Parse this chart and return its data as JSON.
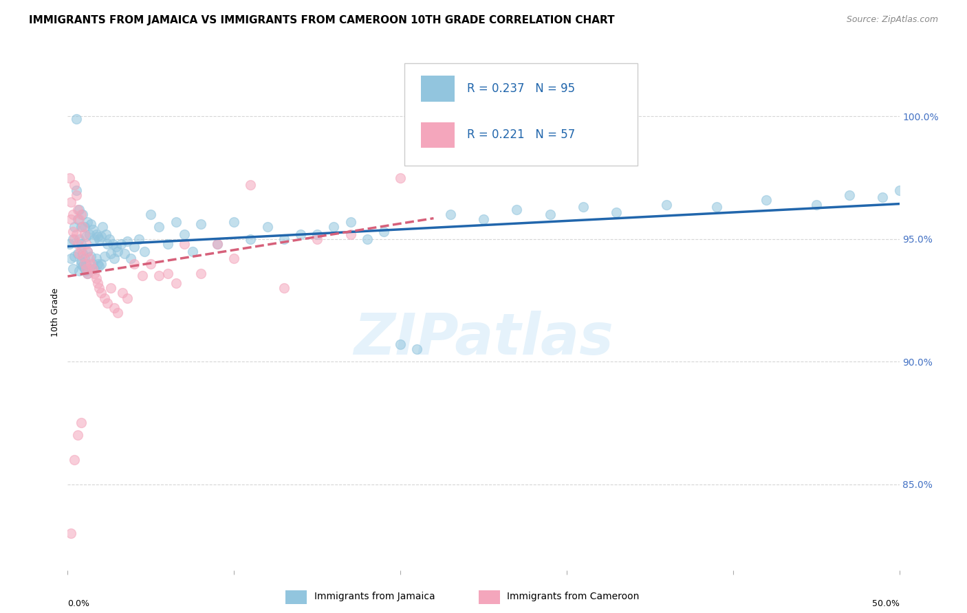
{
  "title": "IMMIGRANTS FROM JAMAICA VS IMMIGRANTS FROM CAMEROON 10TH GRADE CORRELATION CHART",
  "source": "Source: ZipAtlas.com",
  "ylabel": "10th Grade",
  "yaxis_labels": [
    "100.0%",
    "95.0%",
    "90.0%",
    "85.0%"
  ],
  "yaxis_values": [
    1.0,
    0.95,
    0.9,
    0.85
  ],
  "xlim": [
    0.0,
    0.5
  ],
  "ylim": [
    0.815,
    1.025
  ],
  "legend_blue_r": "R = 0.237",
  "legend_blue_n": "N = 95",
  "legend_pink_r": "R = 0.221",
  "legend_pink_n": "N = 57",
  "legend_label_blue": "Immigrants from Jamaica",
  "legend_label_pink": "Immigrants from Cameroon",
  "blue_color": "#92c5de",
  "pink_color": "#f4a6bc",
  "blue_line_color": "#2166ac",
  "pink_line_color": "#d6607a",
  "grid_color": "#cccccc",
  "background_color": "#ffffff",
  "title_fontsize": 11,
  "source_fontsize": 9,
  "axis_label_fontsize": 9,
  "watermark_text": "ZIPatlas",
  "blue_scatter_x": [
    0.001,
    0.002,
    0.003,
    0.003,
    0.004,
    0.004,
    0.005,
    0.005,
    0.006,
    0.006,
    0.007,
    0.007,
    0.007,
    0.008,
    0.008,
    0.008,
    0.009,
    0.009,
    0.01,
    0.01,
    0.011,
    0.011,
    0.012,
    0.012,
    0.013,
    0.013,
    0.014,
    0.014,
    0.015,
    0.015,
    0.016,
    0.016,
    0.017,
    0.017,
    0.018,
    0.018,
    0.019,
    0.019,
    0.02,
    0.02,
    0.021,
    0.022,
    0.023,
    0.024,
    0.025,
    0.026,
    0.027,
    0.028,
    0.029,
    0.03,
    0.032,
    0.034,
    0.036,
    0.038,
    0.04,
    0.043,
    0.046,
    0.05,
    0.055,
    0.06,
    0.065,
    0.07,
    0.075,
    0.08,
    0.09,
    0.1,
    0.11,
    0.12,
    0.13,
    0.14,
    0.15,
    0.16,
    0.17,
    0.18,
    0.19,
    0.2,
    0.21,
    0.23,
    0.25,
    0.27,
    0.29,
    0.31,
    0.33,
    0.36,
    0.39,
    0.42,
    0.45,
    0.47,
    0.49,
    0.5,
    0.008,
    0.009,
    0.01,
    0.011,
    0.012
  ],
  "blue_scatter_y": [
    0.948,
    0.942,
    0.95,
    0.938,
    0.955,
    0.943,
    0.999,
    0.97,
    0.958,
    0.944,
    0.962,
    0.95,
    0.937,
    0.955,
    0.948,
    0.941,
    0.96,
    0.944,
    0.955,
    0.942,
    0.951,
    0.94,
    0.957,
    0.945,
    0.952,
    0.938,
    0.956,
    0.943,
    0.954,
    0.94,
    0.95,
    0.938,
    0.952,
    0.942,
    0.951,
    0.94,
    0.95,
    0.939,
    0.951,
    0.94,
    0.955,
    0.943,
    0.952,
    0.948,
    0.95,
    0.944,
    0.948,
    0.942,
    0.947,
    0.945,
    0.948,
    0.944,
    0.949,
    0.942,
    0.947,
    0.95,
    0.945,
    0.96,
    0.955,
    0.948,
    0.957,
    0.952,
    0.945,
    0.956,
    0.948,
    0.957,
    0.95,
    0.955,
    0.95,
    0.952,
    0.952,
    0.955,
    0.957,
    0.95,
    0.953,
    0.907,
    0.905,
    0.96,
    0.958,
    0.962,
    0.96,
    0.963,
    0.961,
    0.964,
    0.963,
    0.966,
    0.964,
    0.968,
    0.967,
    0.97,
    0.94,
    0.939,
    0.938,
    0.937,
    0.936
  ],
  "pink_scatter_x": [
    0.001,
    0.002,
    0.002,
    0.003,
    0.003,
    0.004,
    0.004,
    0.005,
    0.005,
    0.006,
    0.006,
    0.007,
    0.007,
    0.008,
    0.008,
    0.009,
    0.009,
    0.01,
    0.01,
    0.011,
    0.011,
    0.012,
    0.012,
    0.013,
    0.014,
    0.015,
    0.016,
    0.017,
    0.018,
    0.019,
    0.02,
    0.022,
    0.024,
    0.026,
    0.028,
    0.03,
    0.033,
    0.036,
    0.04,
    0.045,
    0.05,
    0.055,
    0.06,
    0.065,
    0.07,
    0.08,
    0.09,
    0.1,
    0.11,
    0.13,
    0.15,
    0.17,
    0.2,
    0.002,
    0.004,
    0.006,
    0.008
  ],
  "pink_scatter_y": [
    0.975,
    0.965,
    0.958,
    0.96,
    0.953,
    0.972,
    0.95,
    0.968,
    0.952,
    0.962,
    0.948,
    0.958,
    0.944,
    0.96,
    0.946,
    0.955,
    0.943,
    0.952,
    0.94,
    0.948,
    0.938,
    0.945,
    0.936,
    0.942,
    0.94,
    0.938,
    0.936,
    0.934,
    0.932,
    0.93,
    0.928,
    0.926,
    0.924,
    0.93,
    0.922,
    0.92,
    0.928,
    0.926,
    0.94,
    0.935,
    0.94,
    0.935,
    0.936,
    0.932,
    0.948,
    0.936,
    0.948,
    0.942,
    0.972,
    0.93,
    0.95,
    0.952,
    0.975,
    0.83,
    0.86,
    0.87,
    0.875
  ]
}
